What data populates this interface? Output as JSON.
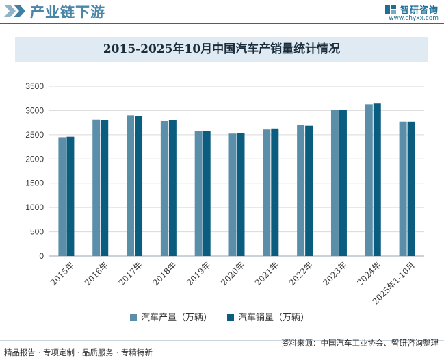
{
  "header": {
    "title": "产业链下游",
    "brand_name": "智研咨询",
    "brand_url": "www.chyxx.com"
  },
  "colors": {
    "production": "#5b8ea8",
    "sales": "#0b5d80",
    "header_accent": "#1f6f94"
  },
  "chart_data": {
    "type": "bar",
    "title": "2015-2025年10月中国汽车产销量统计情况",
    "categories": [
      "2015年",
      "2016年",
      "2017年",
      "2018年",
      "2019年",
      "2020年",
      "2021年",
      "2022年",
      "2023年",
      "2024年",
      "2025年1-10月"
    ],
    "series": [
      {
        "name": "汽车产量（万辆）",
        "values": [
          2450,
          2812,
          2902,
          2781,
          2572,
          2523,
          2608,
          2702,
          3016,
          3128,
          2770
        ]
      },
      {
        "name": "汽车销量（万辆）",
        "values": [
          2460,
          2803,
          2888,
          2808,
          2577,
          2531,
          2628,
          2686,
          3009,
          3144,
          2769
        ]
      }
    ],
    "ylim": [
      0,
      3500
    ],
    "yticks": [
      "0",
      "500",
      "1000",
      "1500",
      "2000",
      "2500",
      "3000",
      "3500"
    ],
    "grid": true,
    "legend_position": "bottom"
  },
  "footer": {
    "left": "精品报告 · 专项定制 · 品质服务 · 专精特新",
    "right": "资料来源：中国汽车工业协会、智研咨询整理"
  }
}
